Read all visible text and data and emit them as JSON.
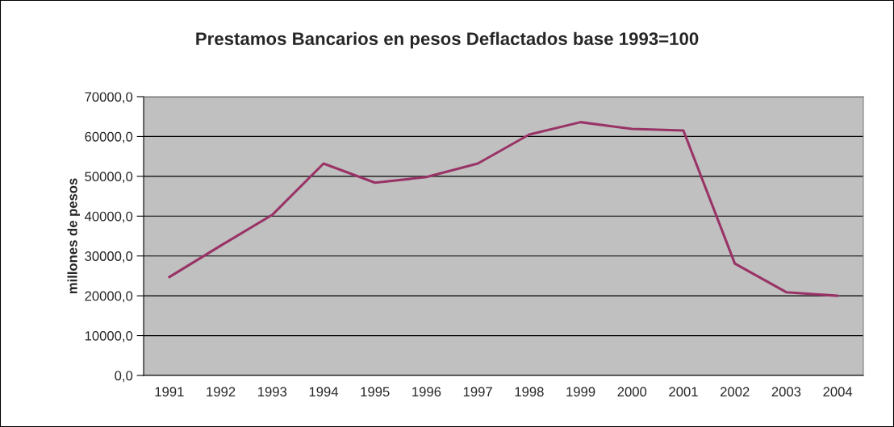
{
  "chart_data": {
    "type": "line",
    "title": "Prestamos Bancarios en pesos Deflactados base 1993=100",
    "ylabel": "millones de pesos",
    "categories": [
      "1991",
      "1992",
      "1993",
      "1994",
      "1995",
      "1996",
      "1997",
      "1998",
      "1999",
      "2000",
      "2001",
      "2002",
      "2003",
      "2004"
    ],
    "series": [
      {
        "color": "#993366",
        "values": [
          24700,
          32600,
          40300,
          53200,
          48400,
          49800,
          53200,
          60500,
          63600,
          61900,
          61500,
          28100,
          20900,
          20000
        ]
      }
    ],
    "ylim": [
      0,
      70000
    ],
    "yticks": [
      {
        "value": 0,
        "label": "0,0"
      },
      {
        "value": 10000,
        "label": "10000,0"
      },
      {
        "value": 20000,
        "label": "20000,0"
      },
      {
        "value": 30000,
        "label": "30000,0"
      },
      {
        "value": 40000,
        "label": "40000,0"
      },
      {
        "value": 50000,
        "label": "50000,0"
      },
      {
        "value": 60000,
        "label": "60000,0"
      },
      {
        "value": 70000,
        "label": "70000,0"
      }
    ],
    "grid": "y",
    "legend": false,
    "marker": "none",
    "line_style": "solid"
  }
}
